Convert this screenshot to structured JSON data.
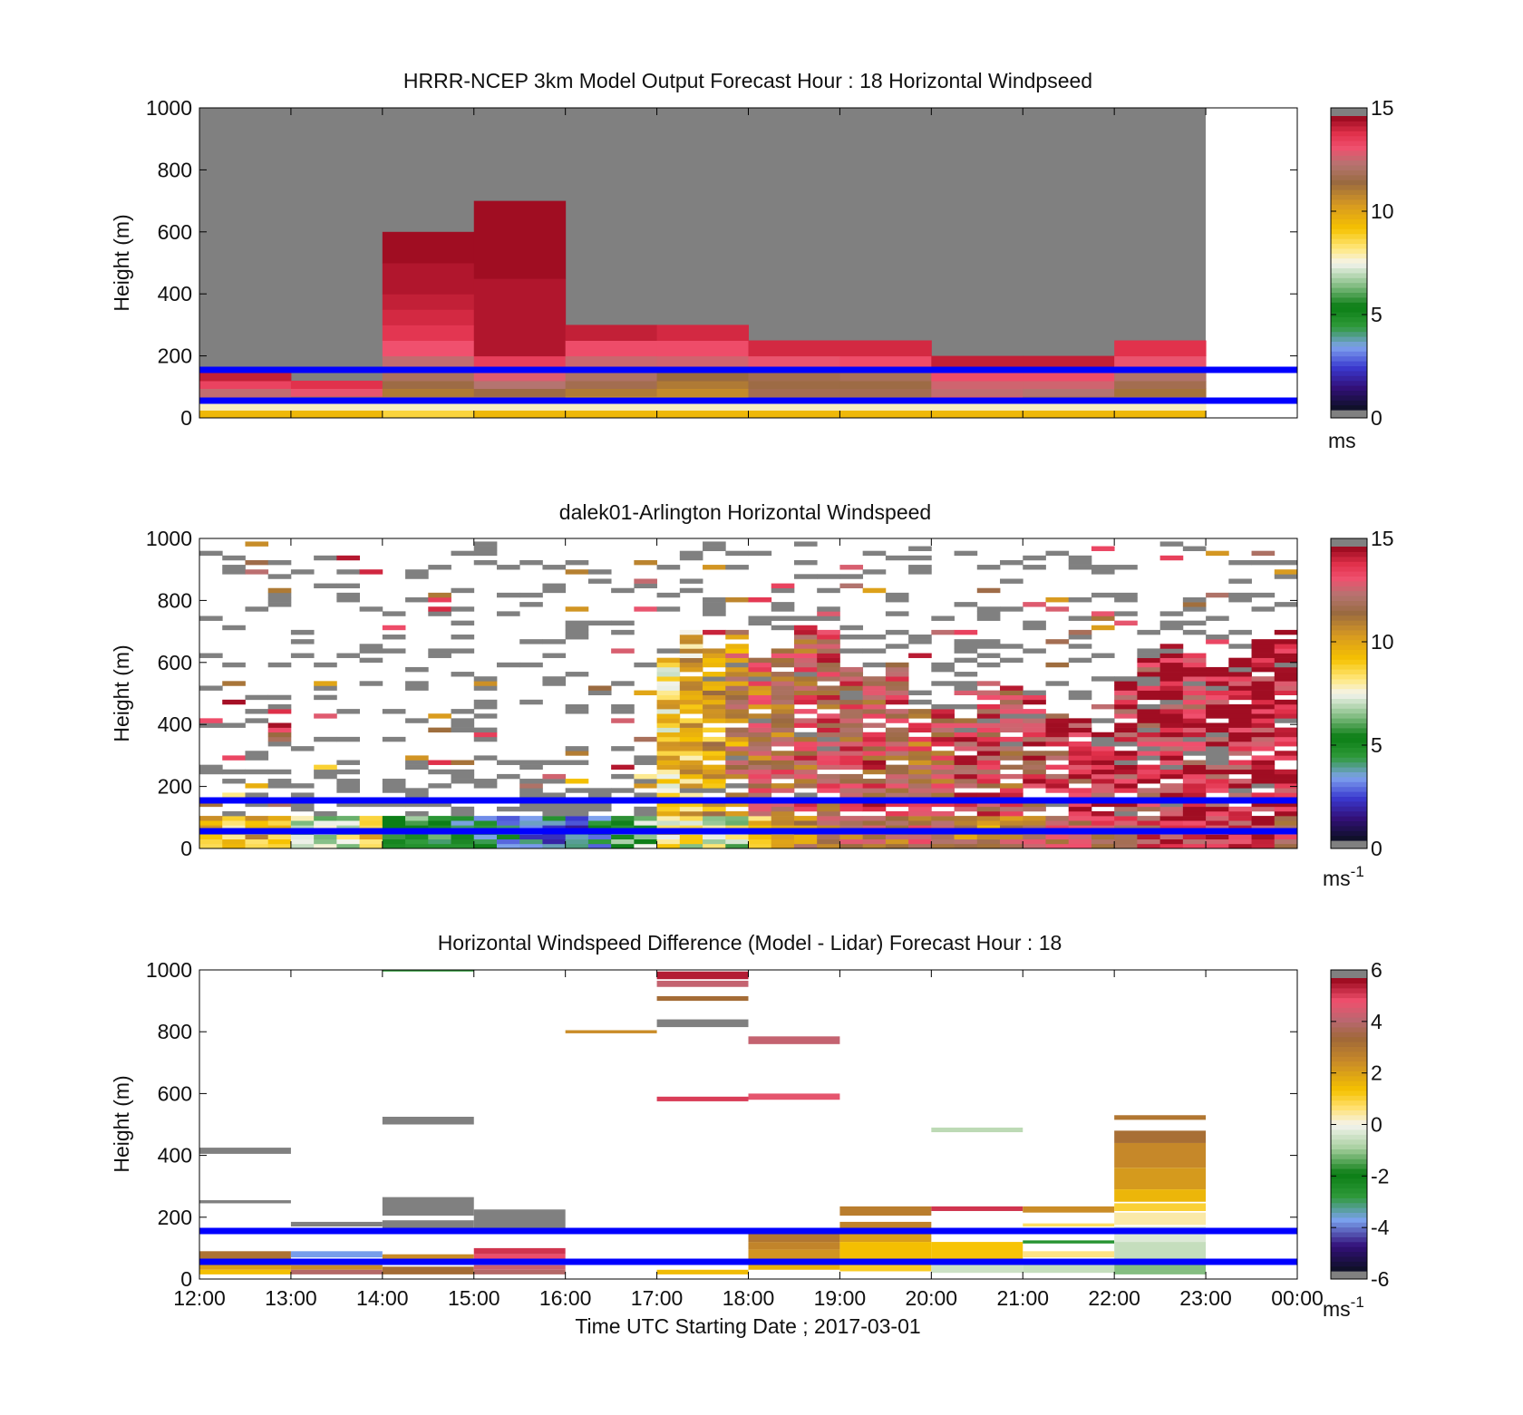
{
  "chart_data": [
    {
      "type": "heatmap",
      "title": "HRRR-NCEP 3km Model Output   Forecast Hour : 18 Horizontal Windpseed",
      "ylabel": "Height (m)",
      "ylim": [
        0,
        1000
      ],
      "yticks": [
        "0",
        "200",
        "400",
        "600",
        "800",
        "1000"
      ],
      "colorbar": {
        "range": [
          0,
          15
        ],
        "ticks": [
          "0",
          "5",
          "10",
          "15"
        ],
        "unit": "ms"
      },
      "overlay_lines_m": [
        55,
        155
      ],
      "columns": [
        {
          "start": "12:00",
          "top": 150,
          "layers": [
            [
              0,
              25,
              9.6
            ],
            [
              25,
              50,
              7.8
            ],
            [
              50,
              65,
              11.3
            ],
            [
              65,
              95,
              12.8
            ],
            [
              95,
              120,
              13.8
            ],
            [
              120,
              150,
              14.6
            ]
          ]
        },
        {
          "start": "13:00",
          "top": 120,
          "layers": [
            [
              0,
              25,
              9.6
            ],
            [
              25,
              50,
              7.8
            ],
            [
              50,
              70,
              12.2
            ],
            [
              70,
              95,
              13.4
            ],
            [
              95,
              120,
              14.2
            ]
          ]
        },
        {
          "start": "14:00",
          "top": 600,
          "layers": [
            [
              0,
              25,
              8.8
            ],
            [
              25,
              50,
              7.8
            ],
            [
              50,
              70,
              12.2
            ],
            [
              70,
              95,
              11.3
            ],
            [
              95,
              120,
              11.8
            ],
            [
              120,
              150,
              12.3
            ],
            [
              150,
              200,
              12.8
            ],
            [
              200,
              250,
              13.5
            ],
            [
              250,
              300,
              14.1
            ],
            [
              300,
              350,
              14.4
            ],
            [
              350,
              400,
              14.6
            ],
            [
              400,
              500,
              14.8
            ],
            [
              500,
              600,
              15
            ]
          ]
        },
        {
          "start": "15:00",
          "top": 700,
          "layers": [
            [
              0,
              25,
              9.6
            ],
            [
              25,
              50,
              7.8
            ],
            [
              50,
              70,
              12.2
            ],
            [
              70,
              95,
              11.8
            ],
            [
              95,
              120,
              12.6
            ],
            [
              120,
              150,
              13.2
            ],
            [
              150,
              200,
              13.9
            ],
            [
              200,
              450,
              14.8
            ],
            [
              450,
              700,
              15
            ]
          ]
        },
        {
          "start": "16:00",
          "top": 300,
          "layers": [
            [
              0,
              25,
              9.6
            ],
            [
              25,
              50,
              7.8
            ],
            [
              50,
              70,
              10.6
            ],
            [
              70,
              95,
              11.3
            ],
            [
              95,
              120,
              12
            ],
            [
              120,
              150,
              12.4
            ],
            [
              150,
              200,
              12.9
            ],
            [
              200,
              250,
              13.6
            ],
            [
              250,
              300,
              14.6
            ]
          ]
        },
        {
          "start": "17:00",
          "top": 300,
          "layers": [
            [
              0,
              25,
              9.6
            ],
            [
              25,
              50,
              7.8
            ],
            [
              50,
              70,
              10.6
            ],
            [
              70,
              95,
              10.9
            ],
            [
              95,
              120,
              11.3
            ],
            [
              120,
              150,
              11.7
            ],
            [
              150,
              200,
              13
            ],
            [
              200,
              250,
              13.6
            ],
            [
              250,
              300,
              14.4
            ]
          ]
        },
        {
          "start": "18:00",
          "top": 250,
          "layers": [
            [
              0,
              25,
              9.6
            ],
            [
              25,
              50,
              7.8
            ],
            [
              50,
              70,
              12.2
            ],
            [
              70,
              95,
              12
            ],
            [
              95,
              120,
              11.8
            ],
            [
              120,
              150,
              12
            ],
            [
              150,
              200,
              13.4
            ],
            [
              200,
              250,
              14.4
            ]
          ]
        },
        {
          "start": "19:00",
          "top": 250,
          "layers": [
            [
              0,
              25,
              9.6
            ],
            [
              25,
              50,
              7.8
            ],
            [
              50,
              70,
              12.2
            ],
            [
              70,
              95,
              12
            ],
            [
              95,
              120,
              11.8
            ],
            [
              120,
              150,
              12.2
            ],
            [
              150,
              200,
              13.6
            ],
            [
              200,
              250,
              14.4
            ]
          ]
        },
        {
          "start": "20:00",
          "top": 200,
          "layers": [
            [
              0,
              25,
              9.6
            ],
            [
              25,
              50,
              7.8
            ],
            [
              50,
              70,
              13.2
            ],
            [
              70,
              95,
              12.8
            ],
            [
              95,
              120,
              13
            ],
            [
              120,
              150,
              13.6
            ],
            [
              150,
              200,
              14.6
            ]
          ]
        },
        {
          "start": "21:00",
          "top": 200,
          "layers": [
            [
              0,
              25,
              9.6
            ],
            [
              25,
              50,
              7.8
            ],
            [
              50,
              70,
              12.2
            ],
            [
              70,
              95,
              12.6
            ],
            [
              95,
              120,
              13
            ],
            [
              120,
              150,
              13.6
            ],
            [
              150,
              200,
              14.6
            ]
          ]
        },
        {
          "start": "22:00",
          "top": 250,
          "layers": [
            [
              0,
              25,
              9.6
            ],
            [
              25,
              50,
              7.8
            ],
            [
              50,
              70,
              12.2
            ],
            [
              70,
              95,
              11.5
            ],
            [
              95,
              120,
              12
            ],
            [
              120,
              150,
              12.5
            ],
            [
              150,
              200,
              13.4
            ],
            [
              200,
              250,
              14.2
            ]
          ]
        }
      ]
    },
    {
      "type": "heatmap",
      "title": "dalek01-Arlington  Horizontal Windspeed",
      "ylabel": "Height (m)",
      "ylim": [
        0,
        1000
      ],
      "yticks": [
        "0",
        "200",
        "400",
        "600",
        "800",
        "1000"
      ],
      "colorbar": {
        "range": [
          0,
          15
        ],
        "ticks": [
          "0",
          "5",
          "10",
          "15"
        ],
        "unit": "ms",
        "unit_exp": "-1"
      },
      "overlay_lines_m": [
        55,
        155
      ],
      "x_range_hours": [
        0,
        12
      ],
      "x_steps": 48,
      "height_step_m": 15,
      "profile_windspeed": {
        "near_surface_0_100m": [
          9.5,
          9.2,
          9.8,
          9.4,
          7.0,
          6.5,
          7.5,
          9.0,
          6.2,
          5.5,
          5.0,
          4.6,
          4.3,
          3.6,
          3.2,
          3.0,
          2.6,
          4.0,
          5.5,
          6.0,
          8.5,
          7.8,
          7.5,
          7.2,
          9.5,
          10.3,
          11.0,
          11.6,
          12.0,
          12.2,
          11.5,
          12.4,
          12.0,
          11.3,
          11.0,
          11.8,
          12.2,
          12.6,
          13.0,
          12.8,
          13.4,
          13.6,
          13.8,
          14.0,
          14.2,
          13.8,
          14.4,
          12.6
        ],
        "upper_layer": [
          0,
          0,
          0,
          0,
          0,
          0,
          0,
          0,
          0,
          0,
          0,
          0,
          0,
          0,
          0,
          0,
          0,
          0,
          0,
          0,
          9.0,
          9.5,
          10.5,
          11.2,
          12.0,
          12.4,
          12.8,
          13.0,
          12.8,
          13.2,
          13.0,
          12.6,
          12.8,
          13.4,
          13.2,
          13.0,
          13.6,
          13.8,
          14.0,
          14.2,
          14.4,
          14.0,
          14.6,
          14.2,
          14.4,
          14.6,
          14.8,
          14.6
        ],
        "valid_top_m": [
          270,
          260,
          330,
          240,
          260,
          270,
          290,
          230,
          240,
          330,
          250,
          220,
          230,
          200,
          260,
          300,
          230,
          320,
          210,
          300,
          610,
          700,
          650,
          700,
          620,
          650,
          720,
          710,
          580,
          560,
          600,
          480,
          470,
          420,
          540,
          520,
          500,
          440,
          420,
          380,
          550,
          620,
          660,
          640,
          580,
          620,
          680,
          700
        ]
      },
      "no_data_color": "#ffffff"
    },
    {
      "type": "heatmap",
      "title": "Horizontal Windspeed Difference (Model - Lidar) Forecast Hour : 18",
      "xlabel": "Time UTC  Starting Date ; 2017-03-01",
      "ylabel": "Height (m)",
      "ylim": [
        0,
        1000
      ],
      "yticks": [
        "0",
        "200",
        "400",
        "600",
        "800",
        "1000"
      ],
      "xticks": [
        "12:00",
        "13:00",
        "14:00",
        "15:00",
        "16:00",
        "17:00",
        "18:00",
        "19:00",
        "20:00",
        "21:00",
        "22:00",
        "23:00",
        "00:00"
      ],
      "colorbar": {
        "range": [
          -6,
          6
        ],
        "ticks": [
          "-6",
          "-4",
          "-2",
          "0",
          "2",
          "4",
          "6"
        ],
        "unit": "ms",
        "unit_exp": "-1"
      },
      "overlay_lines_m": [
        55,
        155
      ],
      "bands": [
        {
          "hour": 0,
          "y0": 405,
          "y1": 425,
          "v": -6.2
        },
        {
          "hour": 0,
          "y0": 245,
          "y1": 255,
          "v": -6.2
        },
        {
          "hour": 0,
          "y0": 55,
          "y1": 90,
          "v": 3.3
        },
        {
          "hour": 0,
          "y0": 30,
          "y1": 50,
          "v": 2.2
        },
        {
          "hour": 0,
          "y0": 15,
          "y1": 30,
          "v": 1.5
        },
        {
          "hour": 1,
          "y0": 170,
          "y1": 185,
          "v": 6.8
        },
        {
          "hour": 1,
          "y0": 70,
          "y1": 90,
          "v": -4.0
        },
        {
          "hour": 1,
          "y0": 30,
          "y1": 45,
          "v": 2.6
        },
        {
          "hour": 1,
          "y0": 15,
          "y1": 30,
          "v": 4.2
        },
        {
          "hour": 2,
          "y0": 995,
          "y1": 1000,
          "v": -2.8
        },
        {
          "hour": 2,
          "y0": 500,
          "y1": 525,
          "v": 6.8
        },
        {
          "hour": 2,
          "y0": 205,
          "y1": 265,
          "v": 6.8
        },
        {
          "hour": 2,
          "y0": 160,
          "y1": 190,
          "v": 6.8
        },
        {
          "hour": 2,
          "y0": 55,
          "y1": 80,
          "v": 2.6
        },
        {
          "hour": 2,
          "y0": 15,
          "y1": 40,
          "v": 3.5
        },
        {
          "hour": 3,
          "y0": 160,
          "y1": 225,
          "v": 6.8
        },
        {
          "hour": 3,
          "y0": 80,
          "y1": 100,
          "v": 5.5
        },
        {
          "hour": 3,
          "y0": 55,
          "y1": 80,
          "v": 5.2
        },
        {
          "hour": 3,
          "y0": 30,
          "y1": 45,
          "v": 4.6
        },
        {
          "hour": 3,
          "y0": 15,
          "y1": 30,
          "v": 4.2
        },
        {
          "hour": 4,
          "y0": 795,
          "y1": 805,
          "v": 2.6
        },
        {
          "hour": 5,
          "y0": 970,
          "y1": 995,
          "v": 5.8
        },
        {
          "hour": 5,
          "y0": 945,
          "y1": 965,
          "v": 4.5
        },
        {
          "hour": 5,
          "y0": 900,
          "y1": 915,
          "v": 3.5
        },
        {
          "hour": 5,
          "y0": 815,
          "y1": 840,
          "v": 6.8
        },
        {
          "hour": 5,
          "y0": 575,
          "y1": 590,
          "v": 5.4
        },
        {
          "hour": 5,
          "y0": 15,
          "y1": 30,
          "v": 1.6
        },
        {
          "hour": 6,
          "y0": 760,
          "y1": 785,
          "v": 4.5
        },
        {
          "hour": 6,
          "y0": 580,
          "y1": 600,
          "v": 5.0
        },
        {
          "hour": 6,
          "y0": 120,
          "y1": 150,
          "v": 3.2
        },
        {
          "hour": 6,
          "y0": 95,
          "y1": 120,
          "v": 2.8
        },
        {
          "hour": 6,
          "y0": 55,
          "y1": 95,
          "v": 2.4
        },
        {
          "hour": 6,
          "y0": 30,
          "y1": 55,
          "v": 1.8
        },
        {
          "hour": 7,
          "y0": 205,
          "y1": 235,
          "v": 3.0
        },
        {
          "hour": 7,
          "y0": 165,
          "y1": 185,
          "v": 2.8
        },
        {
          "hour": 7,
          "y0": 120,
          "y1": 150,
          "v": 2.2
        },
        {
          "hour": 7,
          "y0": 55,
          "y1": 120,
          "v": 1.5
        },
        {
          "hour": 7,
          "y0": 25,
          "y1": 55,
          "v": 1.2
        },
        {
          "hour": 8,
          "y0": 475,
          "y1": 490,
          "v": -0.7
        },
        {
          "hour": 8,
          "y0": 220,
          "y1": 235,
          "v": 5.5
        },
        {
          "hour": 8,
          "y0": 60,
          "y1": 120,
          "v": 1.4
        },
        {
          "hour": 8,
          "y0": 20,
          "y1": 55,
          "v": -0.5
        },
        {
          "hour": 9,
          "y0": 215,
          "y1": 235,
          "v": 2.6
        },
        {
          "hour": 9,
          "y0": 170,
          "y1": 180,
          "v": 0.8
        },
        {
          "hour": 9,
          "y0": 115,
          "y1": 125,
          "v": -2.8
        },
        {
          "hour": 9,
          "y0": 70,
          "y1": 90,
          "v": 0.6
        },
        {
          "hour": 9,
          "y0": 20,
          "y1": 55,
          "v": -0.6
        },
        {
          "hour": 10,
          "y0": 515,
          "y1": 530,
          "v": 3.2
        },
        {
          "hour": 10,
          "y0": 440,
          "y1": 480,
          "v": 3.4
        },
        {
          "hour": 10,
          "y0": 360,
          "y1": 440,
          "v": 2.7
        },
        {
          "hour": 10,
          "y0": 290,
          "y1": 360,
          "v": 2.3
        },
        {
          "hour": 10,
          "y0": 250,
          "y1": 290,
          "v": 1.7
        },
        {
          "hour": 10,
          "y0": 220,
          "y1": 245,
          "v": 1.1
        },
        {
          "hour": 10,
          "y0": 175,
          "y1": 215,
          "v": 0.4
        },
        {
          "hour": 10,
          "y0": 120,
          "y1": 170,
          "v": -0.3
        },
        {
          "hour": 10,
          "y0": 55,
          "y1": 120,
          "v": -0.6
        },
        {
          "hour": 10,
          "y0": 15,
          "y1": 50,
          "v": -1.2
        }
      ]
    }
  ]
}
